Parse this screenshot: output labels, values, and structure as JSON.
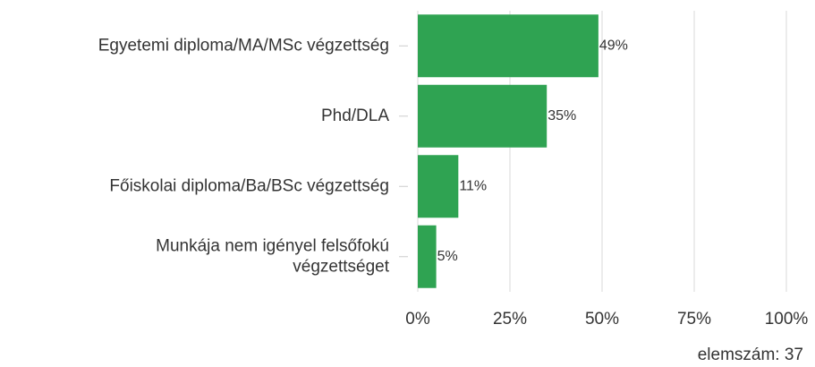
{
  "chart_data": {
    "type": "bar",
    "orientation": "horizontal",
    "categories": [
      "Egyetemi diploma/MA/MSc végzettség",
      "Phd/DLA",
      "Főiskolai diploma/Ba/BSc végzettség",
      "Munkája nem igényel felsőfokú végzettséget"
    ],
    "values": [
      49,
      35,
      11,
      5
    ],
    "value_labels": [
      "49%",
      "35%",
      "11%",
      "5%"
    ],
    "color": "#2fa352",
    "xlim": [
      0,
      100
    ],
    "xticks": [
      {
        "value": 0,
        "label": "0%"
      },
      {
        "value": 25,
        "label": "25%"
      },
      {
        "value": 50,
        "label": "50%"
      },
      {
        "value": 75,
        "label": "75%"
      },
      {
        "value": 100,
        "label": "100%"
      }
    ],
    "grid": true,
    "annotation": "elemszám: 37"
  }
}
